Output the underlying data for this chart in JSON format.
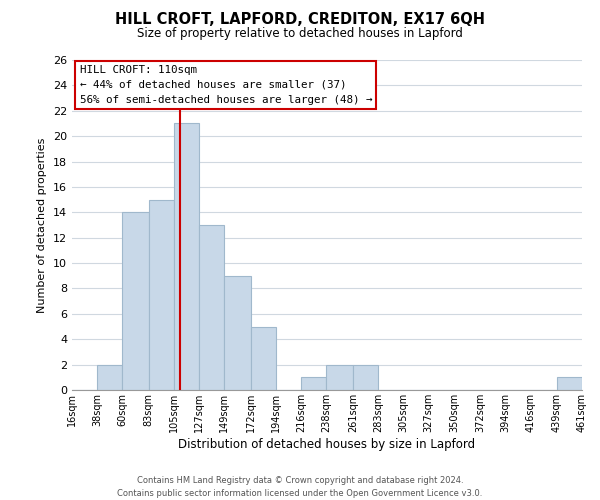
{
  "title": "HILL CROFT, LAPFORD, CREDITON, EX17 6QH",
  "subtitle": "Size of property relative to detached houses in Lapford",
  "xlabel": "Distribution of detached houses by size in Lapford",
  "ylabel": "Number of detached properties",
  "bin_edges": [
    16,
    38,
    60,
    83,
    105,
    127,
    149,
    172,
    194,
    216,
    238,
    261,
    283,
    305,
    327,
    350,
    372,
    394,
    416,
    439,
    461
  ],
  "bin_labels": [
    "16sqm",
    "38sqm",
    "60sqm",
    "83sqm",
    "105sqm",
    "127sqm",
    "149sqm",
    "172sqm",
    "194sqm",
    "216sqm",
    "238sqm",
    "261sqm",
    "283sqm",
    "305sqm",
    "327sqm",
    "350sqm",
    "372sqm",
    "394sqm",
    "416sqm",
    "439sqm",
    "461sqm"
  ],
  "counts": [
    0,
    2,
    14,
    15,
    21,
    13,
    9,
    5,
    0,
    1,
    2,
    2,
    0,
    0,
    0,
    0,
    0,
    0,
    0,
    1
  ],
  "bar_color": "#c8d8e8",
  "bar_edgecolor": "#a0b8cc",
  "vline_x": 110,
  "vline_color": "#cc0000",
  "ylim": [
    0,
    26
  ],
  "yticks": [
    0,
    2,
    4,
    6,
    8,
    10,
    12,
    14,
    16,
    18,
    20,
    22,
    24,
    26
  ],
  "annotation_title": "HILL CROFT: 110sqm",
  "annotation_line1": "← 44% of detached houses are smaller (37)",
  "annotation_line2": "56% of semi-detached houses are larger (48) →",
  "annotation_box_color": "#ffffff",
  "annotation_box_edgecolor": "#cc0000",
  "footer1": "Contains HM Land Registry data © Crown copyright and database right 2024.",
  "footer2": "Contains public sector information licensed under the Open Government Licence v3.0.",
  "background_color": "#ffffff",
  "grid_color": "#d0d8e0"
}
